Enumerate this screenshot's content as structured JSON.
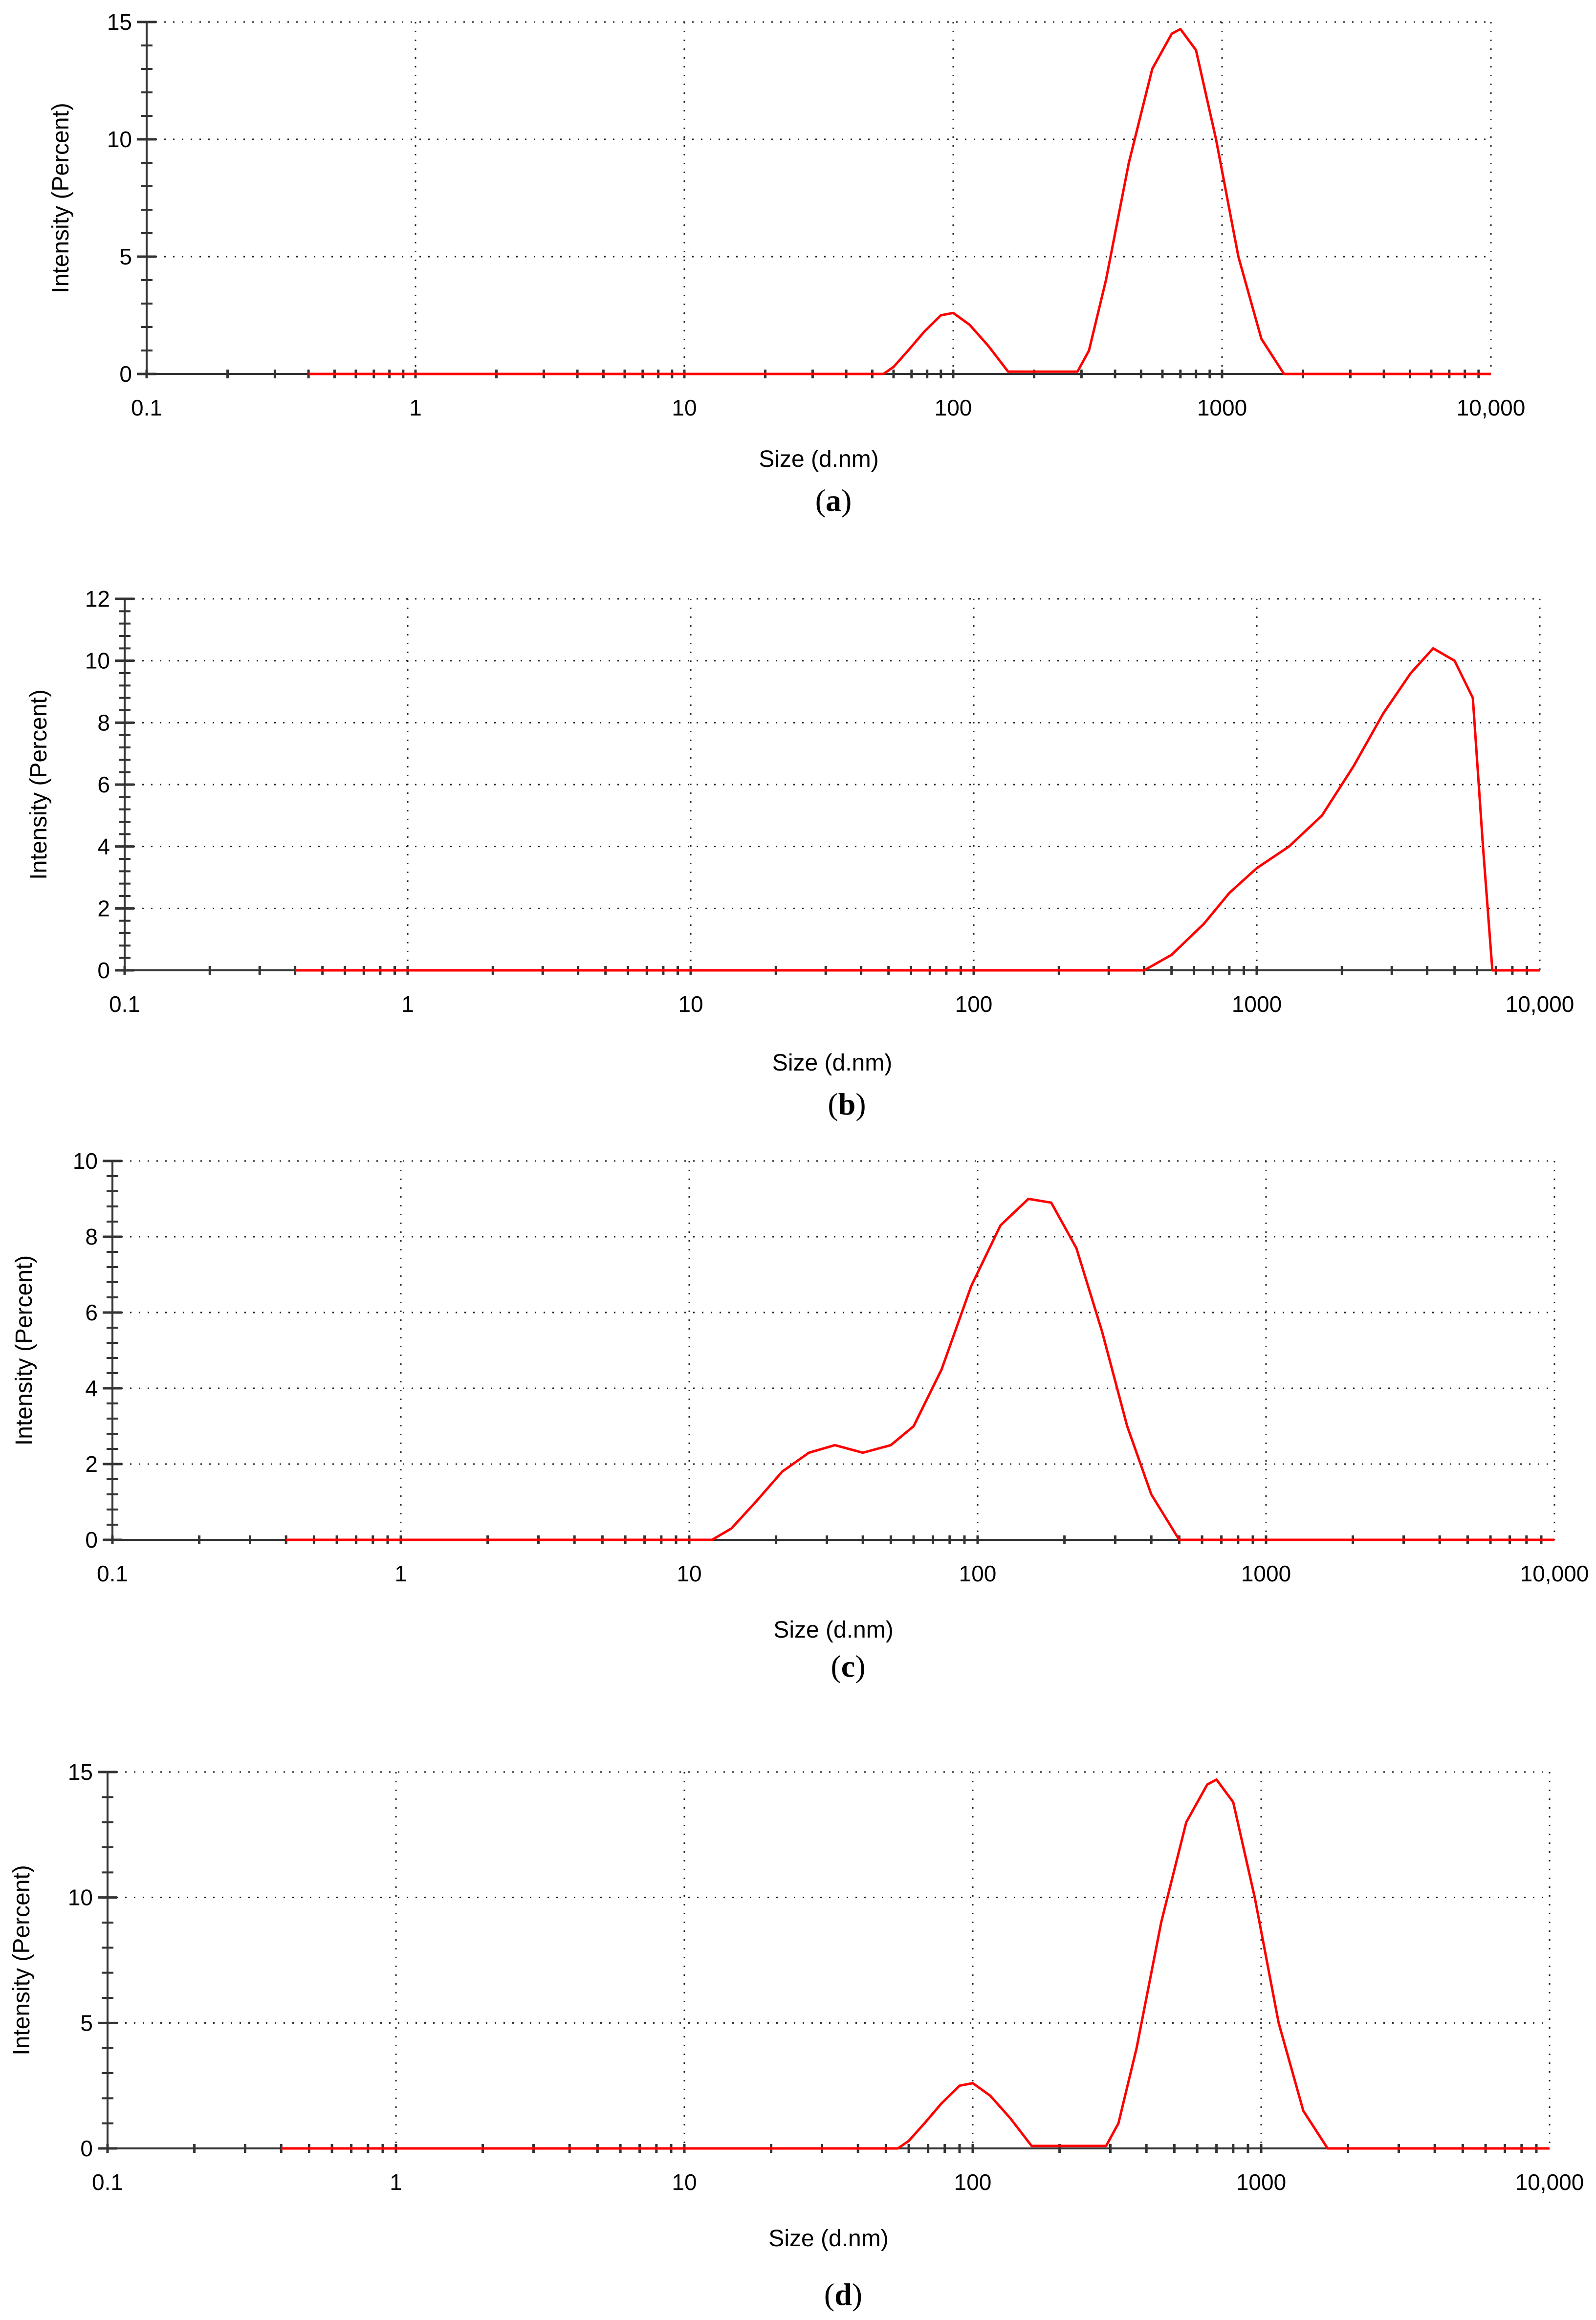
{
  "chart_data": [
    {
      "type": "line",
      "caption": {
        "open": "(",
        "letter": "a",
        "close": ")"
      },
      "xlabel": "Size (d.nm)",
      "ylabel": "Intensity (Percent)",
      "xscale": "log",
      "xlim": [
        0.1,
        10000
      ],
      "ylim": [
        0,
        15
      ],
      "xticks": [
        {
          "value": 0.1,
          "label": "0.1"
        },
        {
          "value": 1,
          "label": "1"
        },
        {
          "value": 10,
          "label": "10"
        },
        {
          "value": 100,
          "label": "100"
        },
        {
          "value": 1000,
          "label": "1000"
        },
        {
          "value": 10000,
          "label": "10,000"
        }
      ],
      "yticks": [
        {
          "value": 0,
          "label": "0"
        },
        {
          "value": 5,
          "label": "5"
        },
        {
          "value": 10,
          "label": "10"
        },
        {
          "value": 15,
          "label": "15"
        }
      ],
      "grid": true,
      "series": [
        {
          "name": "Intensity",
          "color": "#ff0000",
          "x": [
            0.4,
            55,
            60,
            68,
            78,
            90,
            100,
            115,
            135,
            160,
            290,
            320,
            370,
            450,
            550,
            650,
            700,
            800,
            950,
            1150,
            1400,
            1700,
            10000
          ],
          "y": [
            0,
            0,
            0.3,
            1.0,
            1.8,
            2.5,
            2.6,
            2.1,
            1.2,
            0.1,
            0.1,
            1.0,
            4.0,
            9.0,
            13.0,
            14.5,
            14.7,
            13.8,
            10.0,
            5.0,
            1.5,
            0,
            0
          ]
        }
      ]
    },
    {
      "type": "line",
      "caption": {
        "open": "(",
        "letter": "b",
        "close": ")"
      },
      "xlabel": "Size (d.nm)",
      "ylabel": "Intensity (Percent)",
      "xscale": "log",
      "xlim": [
        0.1,
        10000
      ],
      "ylim": [
        0,
        12
      ],
      "xticks": [
        {
          "value": 0.1,
          "label": "0.1"
        },
        {
          "value": 1,
          "label": "1"
        },
        {
          "value": 10,
          "label": "10"
        },
        {
          "value": 100,
          "label": "100"
        },
        {
          "value": 1000,
          "label": "1000"
        },
        {
          "value": 10000,
          "label": "10,000"
        }
      ],
      "yticks": [
        {
          "value": 0,
          "label": "0"
        },
        {
          "value": 2,
          "label": "2"
        },
        {
          "value": 4,
          "label": "4"
        },
        {
          "value": 6,
          "label": "6"
        },
        {
          "value": 8,
          "label": "8"
        },
        {
          "value": 10,
          "label": "10"
        },
        {
          "value": 12,
          "label": "12"
        }
      ],
      "grid": true,
      "series": [
        {
          "name": "Intensity",
          "color": "#ff0000",
          "x": [
            0.4,
            400,
            500,
            650,
            800,
            1000,
            1300,
            1700,
            2200,
            2800,
            3500,
            4200,
            5000,
            5800,
            6300,
            6800,
            10000
          ],
          "y": [
            0,
            0,
            0.5,
            1.5,
            2.5,
            3.3,
            4.0,
            5.0,
            6.6,
            8.3,
            9.6,
            10.4,
            10.0,
            8.8,
            4.0,
            0,
            0
          ]
        }
      ]
    },
    {
      "type": "line",
      "caption": {
        "open": "(",
        "letter": "c",
        "close": ")"
      },
      "xlabel": "Size (d.nm)",
      "ylabel": "Intensity (Percent)",
      "xscale": "log",
      "xlim": [
        0.1,
        10000
      ],
      "ylim": [
        0,
        10
      ],
      "xticks": [
        {
          "value": 0.1,
          "label": "0.1"
        },
        {
          "value": 1,
          "label": "1"
        },
        {
          "value": 10,
          "label": "10"
        },
        {
          "value": 100,
          "label": "100"
        },
        {
          "value": 1000,
          "label": "1000"
        },
        {
          "value": 10000,
          "label": "10,000"
        }
      ],
      "yticks": [
        {
          "value": 0,
          "label": "0"
        },
        {
          "value": 2,
          "label": "2"
        },
        {
          "value": 4,
          "label": "4"
        },
        {
          "value": 6,
          "label": "6"
        },
        {
          "value": 8,
          "label": "8"
        },
        {
          "value": 10,
          "label": "10"
        }
      ],
      "grid": true,
      "series": [
        {
          "name": "Intensity",
          "color": "#ff0000",
          "x": [
            0.4,
            12,
            14,
            17,
            21,
            26,
            32,
            40,
            50,
            60,
            75,
            95,
            120,
            150,
            180,
            220,
            270,
            330,
            400,
            500,
            10000
          ],
          "y": [
            0,
            0,
            0.3,
            1.0,
            1.8,
            2.3,
            2.5,
            2.3,
            2.5,
            3.0,
            4.5,
            6.7,
            8.3,
            9.0,
            8.9,
            7.7,
            5.5,
            3.0,
            1.2,
            0,
            0
          ]
        }
      ]
    },
    {
      "type": "line",
      "caption": {
        "open": "(",
        "letter": "d",
        "close": ")"
      },
      "xlabel": "Size (d.nm)",
      "ylabel": "Intensity (Percent)",
      "xscale": "log",
      "xlim": [
        0.1,
        10000
      ],
      "ylim": [
        0,
        15
      ],
      "xticks": [
        {
          "value": 0.1,
          "label": "0.1"
        },
        {
          "value": 1,
          "label": "1"
        },
        {
          "value": 10,
          "label": "10"
        },
        {
          "value": 100,
          "label": "100"
        },
        {
          "value": 1000,
          "label": "1000"
        },
        {
          "value": 10000,
          "label": "10,000"
        }
      ],
      "yticks": [
        {
          "value": 0,
          "label": "0"
        },
        {
          "value": 5,
          "label": "5"
        },
        {
          "value": 10,
          "label": "10"
        },
        {
          "value": 15,
          "label": "15"
        }
      ],
      "grid": true,
      "series": [
        {
          "name": "Intensity",
          "color": "#ff0000",
          "x": [
            0.4,
            55,
            60,
            68,
            78,
            90,
            100,
            115,
            135,
            160,
            290,
            320,
            370,
            450,
            550,
            650,
            700,
            800,
            950,
            1150,
            1400,
            1700,
            10000
          ],
          "y": [
            0,
            0,
            0.3,
            1.0,
            1.8,
            2.5,
            2.6,
            2.1,
            1.2,
            0.1,
            0.1,
            1.0,
            4.0,
            9.0,
            13.0,
            14.5,
            14.7,
            13.8,
            10.0,
            5.0,
            1.5,
            0,
            0
          ]
        }
      ]
    }
  ]
}
